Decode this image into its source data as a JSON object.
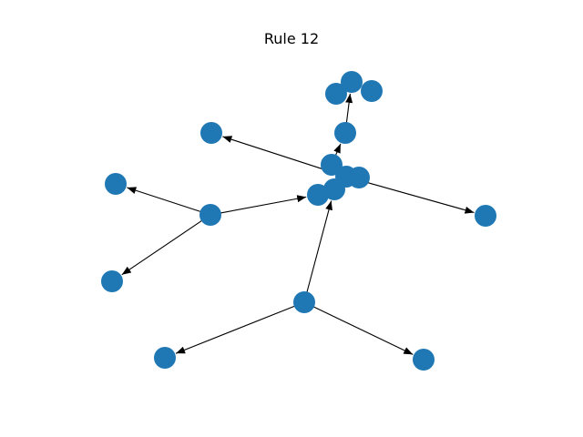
{
  "title": "Rule 12",
  "node_color": "#1f77b4",
  "edge_color": "#000000",
  "node_count": 16,
  "edges": [
    {
      "from": "n3",
      "to": "n4"
    },
    {
      "from": "n4",
      "to": "n0"
    },
    {
      "from": "n5",
      "to": "n1"
    },
    {
      "from": "n5",
      "to": "n11"
    },
    {
      "from": "n6",
      "to": "n12"
    },
    {
      "from": "n6",
      "to": "n13"
    },
    {
      "from": "n6",
      "to": "n5"
    },
    {
      "from": "n7",
      "to": "n14"
    },
    {
      "from": "n7",
      "to": "n15"
    },
    {
      "from": "n7",
      "to": "n8"
    }
  ]
}
